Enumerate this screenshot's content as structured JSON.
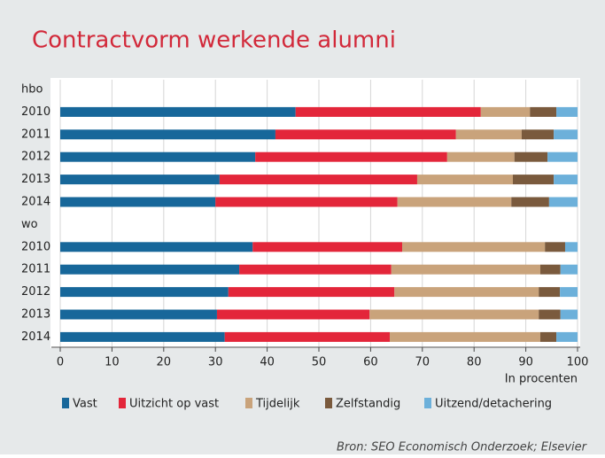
{
  "chart_data": {
    "type": "stacked_barh",
    "title": "Contractvorm werkende alumni",
    "categories": [
      "hbo",
      "2010",
      "2011",
      "2012",
      "2013",
      "2014",
      "wo",
      "2010",
      "2011",
      "2012",
      "2013",
      "2014"
    ],
    "series": [
      {
        "name": "Vast",
        "color": "#17679a",
        "values": [
          null,
          45.5,
          41.6,
          37.7,
          30.8,
          30.0,
          null,
          37.2,
          34.6,
          32.5,
          30.3,
          31.8
        ]
      },
      {
        "name": "Uitzicht op vast",
        "color": "#e3263a",
        "values": [
          null,
          35.8,
          34.9,
          37.1,
          38.2,
          35.2,
          null,
          28.9,
          29.4,
          32.1,
          29.5,
          31.9
        ]
      },
      {
        "name": "Tijdelijk",
        "color": "#c9a37b",
        "values": [
          null,
          9.5,
          12.7,
          13.0,
          18.5,
          22.0,
          null,
          27.6,
          28.8,
          27.9,
          32.7,
          29.1
        ]
      },
      {
        "name": "Zelfstandig",
        "color": "#7a5a3d",
        "values": [
          null,
          5.1,
          6.2,
          6.4,
          7.9,
          7.3,
          null,
          3.9,
          3.9,
          4.1,
          4.2,
          3.1
        ]
      },
      {
        "name": "Uitzend/detachering",
        "color": "#6cb0da",
        "values": [
          null,
          4.1,
          4.6,
          5.8,
          4.6,
          5.5,
          null,
          2.4,
          3.3,
          3.4,
          3.3,
          4.1
        ]
      }
    ],
    "xlim": [
      0,
      100
    ],
    "xticks": [
      0,
      10,
      20,
      30,
      40,
      50,
      60,
      70,
      80,
      90,
      100
    ],
    "xlabel": "In procenten",
    "grid": true,
    "source": "Bron: SEO Economisch Onderzoek; Elsevier"
  }
}
